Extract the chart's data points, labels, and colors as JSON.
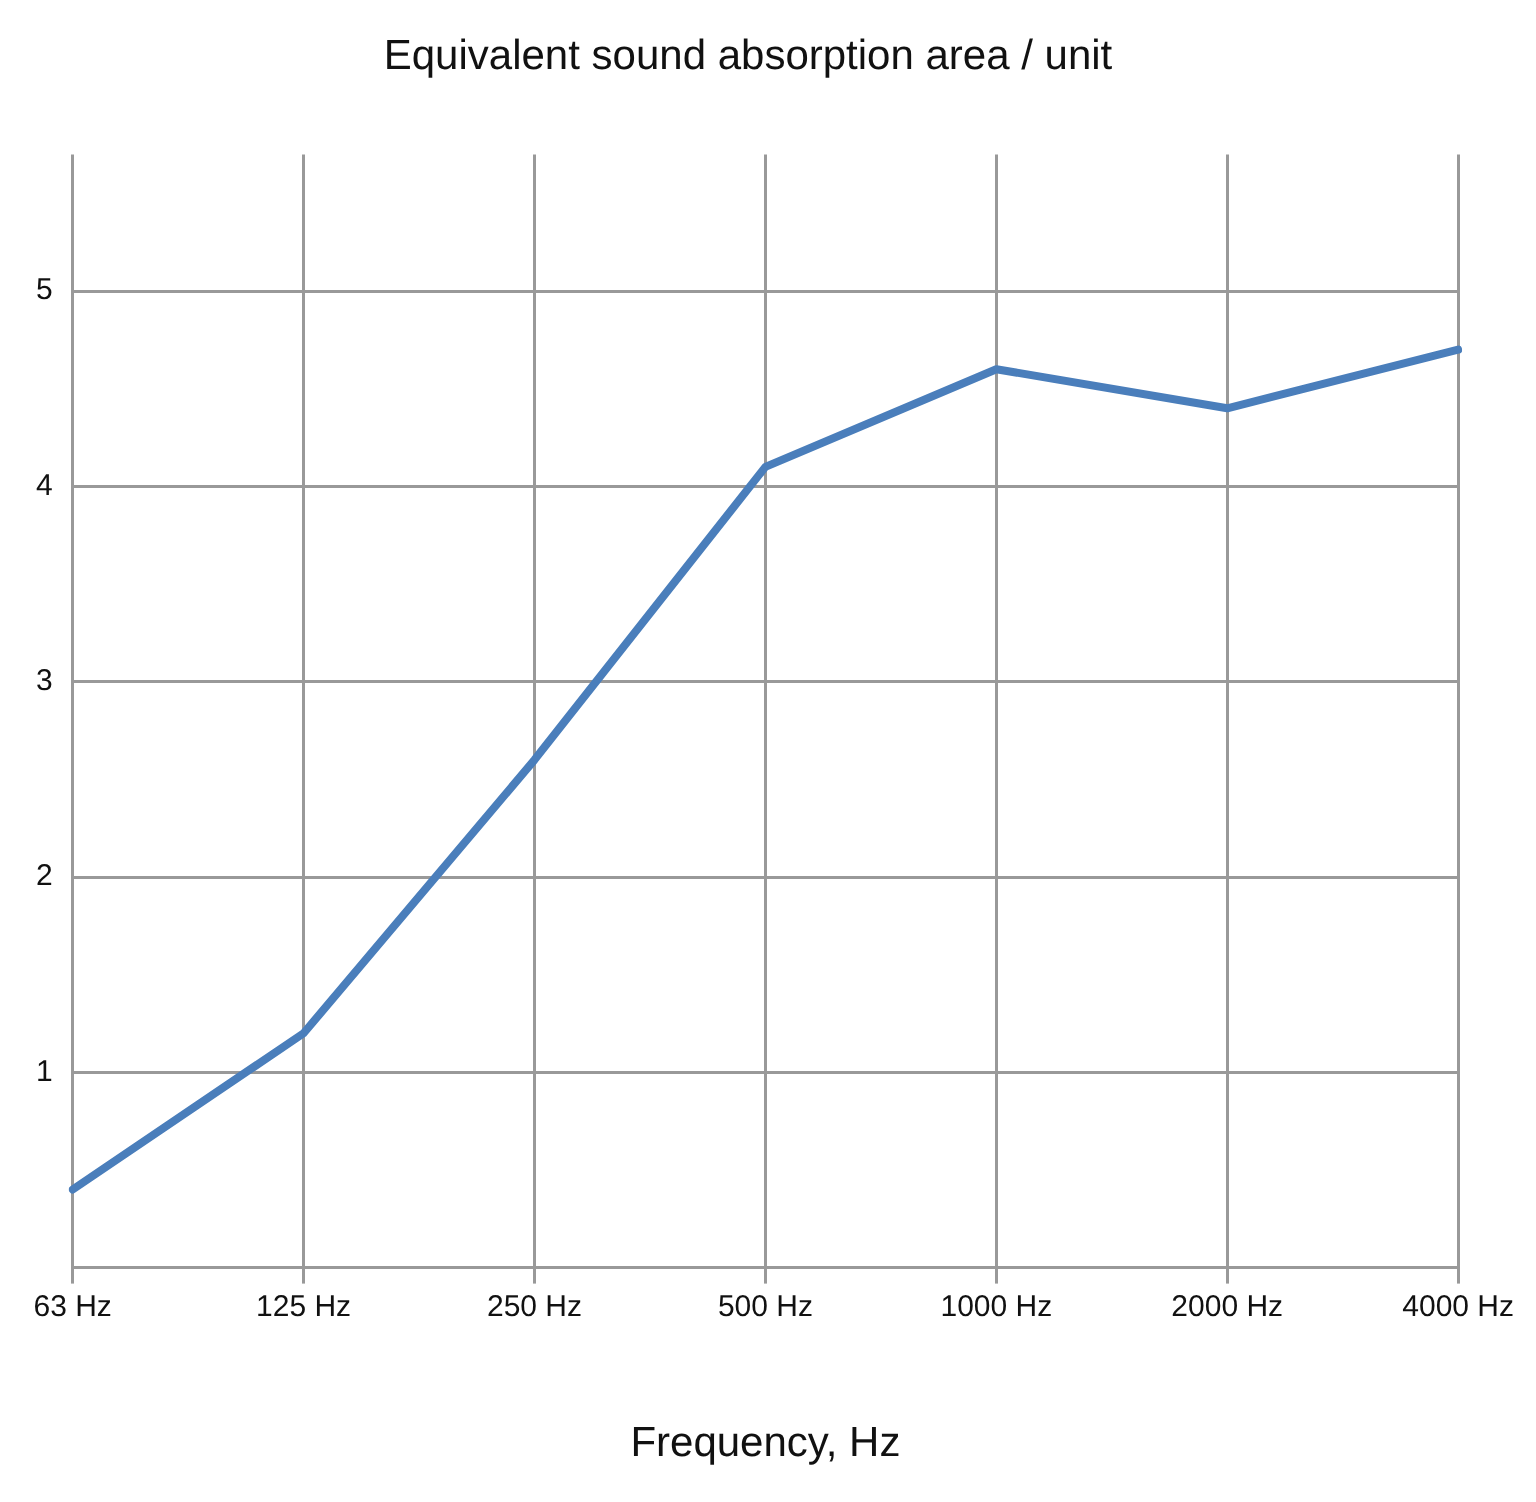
{
  "chart_data": {
    "type": "line",
    "title": "Equivalent sound absorption area / unit",
    "xlabel": "Frequency, Hz",
    "categories": [
      "63 Hz",
      "125 Hz",
      "250 Hz",
      "500 Hz",
      "1000 Hz",
      "2000 Hz",
      "4000 Hz"
    ],
    "series": [
      {
        "color": "#4a7ebb",
        "values": [
          0.4,
          1.2,
          2.6,
          4.1,
          4.6,
          4.4,
          4.7
        ]
      }
    ],
    "ylim": [
      0,
      5.7
    ],
    "yticks": [
      1,
      2,
      3,
      4,
      5
    ],
    "grid": true,
    "legend": false,
    "marker": "none",
    "line_style": "solid"
  }
}
